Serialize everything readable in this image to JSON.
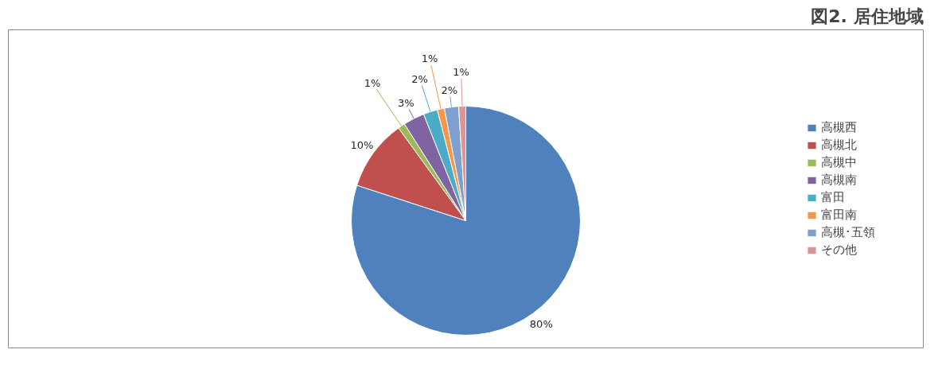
{
  "chart_data": {
    "type": "pie",
    "title": "図2. 居住地域",
    "categories": [
      "高槻西",
      "高槻北",
      "高槻中",
      "高槻南",
      "富田",
      "富田南",
      "高槻･五領",
      "その他"
    ],
    "values": [
      80,
      10,
      1,
      3,
      2,
      1,
      2,
      1
    ],
    "value_labels": [
      "80%",
      "10%",
      "1%",
      "3%",
      "2%",
      "1%",
      "2%",
      "1%"
    ],
    "colors": [
      "#4f81bd",
      "#c0504d",
      "#9bbb59",
      "#8064a2",
      "#4bacc6",
      "#f79646",
      "#7f9fcf",
      "#d99694"
    ],
    "legend": "right"
  }
}
